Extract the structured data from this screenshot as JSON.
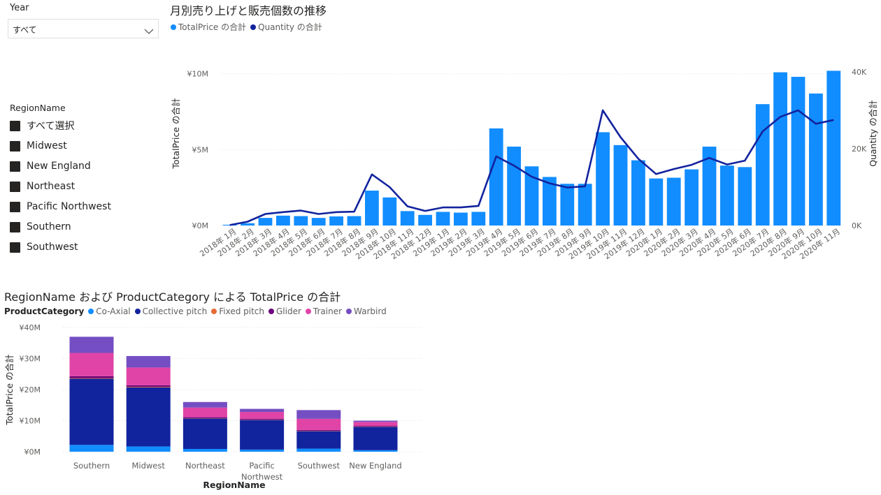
{
  "year_slicer": {
    "label": "Year",
    "value": "すべて"
  },
  "region_slicer": {
    "header": "RegionName",
    "items": [
      "すべて選択",
      "Midwest",
      "New England",
      "Northeast",
      "Pacific Northwest",
      "Southern",
      "Southwest"
    ]
  },
  "colors": {
    "bar": "#118DFF",
    "line": "#12239E",
    "co_axial": "#118DFF",
    "collective_pitch": "#12239E",
    "fixed_pitch": "#E66C37",
    "glider": "#6B007B",
    "trainer": "#E044A7",
    "warbird": "#744EC2"
  },
  "chart_data": [
    {
      "type": "bar+line",
      "title": "月別売り上げと販売個数の推移",
      "legend": [
        "TotalPrice の合計",
        "Quantity の合計"
      ],
      "ylabel_left": "TotalPrice の合計",
      "ylabel_right": "Quantity の合計",
      "yticks_left": [
        "¥0M",
        "¥5M",
        "¥10M"
      ],
      "yticks_right": [
        "0K",
        "20K",
        "40K"
      ],
      "ylim_left": [
        0,
        12.15
      ],
      "ylim_right": [
        0,
        48000
      ],
      "categories": [
        "2018年 1月",
        "2018年 2月",
        "2018年 3月",
        "2018年 4月",
        "2018年 5月",
        "2018年 6月",
        "2018年 7月",
        "2018年 8月",
        "2018年 9月",
        "2018年 10月",
        "2018年 11月",
        "2018年 12月",
        "2019年 1月",
        "2019年 2月",
        "2019年 3月",
        "2019年 4月",
        "2019年 5月",
        "2019年 6月",
        "2019年 7月",
        "2019年 8月",
        "2019年 9月",
        "2019年 10月",
        "2019年 11月",
        "2019年 12月",
        "2020年 1月",
        "2020年 2月",
        "2020年 3月",
        "2020年 4月",
        "2020年 5月",
        "2020年 6月",
        "2020年 7月",
        "2020年 8月",
        "2020年 9月",
        "2020年 10月",
        "2020年 11月"
      ],
      "xtick_labels": [
        "2018年 1月",
        "2018年 2月",
        "2018年 3月",
        "2018年 4月",
        "2018年 5月",
        "2018年 6月",
        "2018年 7月",
        "2018年 8月",
        "2018年 9月",
        "2018年 10月",
        "2018年 11月",
        "2018年 12月",
        "2019年 1月",
        "2019年 2月",
        "2019年 3月",
        "2019年 4月",
        "2019年 5月",
        "2019年 6月",
        "2019年 7月",
        "2019年 8月",
        "2019年 9月",
        "2019年 10月",
        "2019年 11月",
        "2019年 12月",
        "2020年 1月",
        "2020年 2月",
        "2020年 3月",
        "2020年 4月",
        "2020年 5月",
        "2020年 6月",
        "2020年 7月",
        "2020年 8月",
        "2020年 9月",
        "2020年 10月",
        "2020年 11月"
      ],
      "series": [
        {
          "name": "TotalPrice の合計",
          "type": "bar",
          "unit": "¥M",
          "values": [
            0.05,
            0.15,
            0.5,
            0.65,
            0.62,
            0.5,
            0.6,
            0.62,
            2.3,
            1.85,
            0.95,
            0.7,
            0.9,
            0.85,
            0.9,
            6.4,
            5.2,
            3.9,
            3.2,
            2.75,
            2.75,
            6.15,
            5.3,
            4.3,
            3.1,
            3.15,
            3.7,
            5.2,
            3.95,
            3.85,
            8.0,
            10.1,
            9.8,
            8.7,
            10.2
          ]
        },
        {
          "name": "Quantity の合計",
          "type": "line",
          "values": [
            100,
            1000,
            3000,
            3500,
            3900,
            3000,
            3500,
            3600,
            13300,
            10000,
            5000,
            3800,
            4700,
            4700,
            5100,
            18000,
            15600,
            12700,
            11000,
            9900,
            10200,
            30000,
            23000,
            17400,
            13400,
            14700,
            15800,
            17600,
            15900,
            16900,
            24500,
            28300,
            30000,
            26500,
            27500
          ]
        }
      ],
      "grid": true
    },
    {
      "type": "bar",
      "stacked": true,
      "title": "RegionName および ProductCategory による TotalPrice の合計",
      "legend_title": "ProductCategory",
      "xlabel": "RegionName",
      "ylabel": "TotalPrice の合計",
      "yticks": [
        "¥0M",
        "¥10M",
        "¥20M",
        "¥30M",
        "¥40M"
      ],
      "ylim": [
        0,
        40
      ],
      "categories": [
        "Southern",
        "Midwest",
        "Northeast",
        "Pacific Northwest",
        "Southwest",
        "New England"
      ],
      "category_labels": [
        [
          "Southern"
        ],
        [
          "Midwest"
        ],
        [
          "Northeast"
        ],
        [
          "Pacific",
          "Northwest"
        ],
        [
          "Southwest"
        ],
        [
          "New England"
        ]
      ],
      "series": [
        {
          "name": "Co-Axial",
          "values": [
            2.2,
            1.7,
            0.9,
            0.7,
            1.0,
            0.5
          ]
        },
        {
          "name": "Collective pitch",
          "values": [
            21.3,
            19.0,
            9.8,
            9.5,
            5.6,
            7.5
          ]
        },
        {
          "name": "Fixed pitch",
          "values": [
            0.2,
            0.2,
            0.1,
            0.1,
            0.1,
            0.1
          ]
        },
        {
          "name": "Glider",
          "values": [
            0.6,
            0.5,
            0.3,
            0.3,
            0.3,
            0.2
          ]
        },
        {
          "name": "Trainer",
          "values": [
            7.5,
            5.7,
            3.1,
            2.2,
            3.6,
            1.3
          ]
        },
        {
          "name": "Warbird",
          "values": [
            5.2,
            3.7,
            1.8,
            1.0,
            2.8,
            0.4
          ]
        }
      ],
      "grid": true
    }
  ]
}
